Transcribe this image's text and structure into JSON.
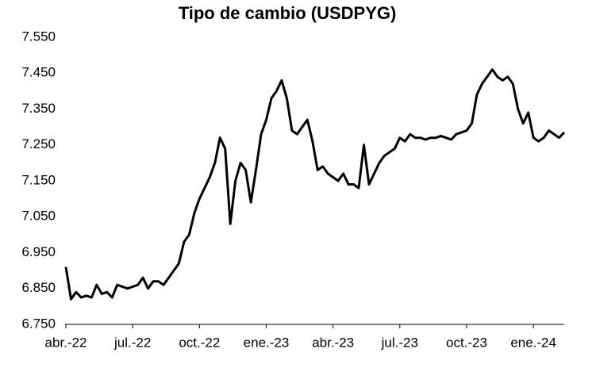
{
  "chart_data": {
    "type": "line",
    "title": "Tipo de cambio (USDPYG)",
    "x": [
      "abr.-22",
      null,
      null,
      null,
      null,
      null,
      null,
      null,
      null,
      null,
      null,
      null,
      null,
      "jul.-22",
      null,
      null,
      null,
      null,
      null,
      null,
      null,
      null,
      null,
      null,
      null,
      null,
      "oct.-22",
      null,
      null,
      null,
      null,
      null,
      null,
      null,
      null,
      null,
      null,
      null,
      null,
      "ene.-23",
      null,
      null,
      null,
      null,
      null,
      null,
      null,
      null,
      null,
      null,
      null,
      null,
      "abr.-23",
      null,
      null,
      null,
      null,
      null,
      null,
      null,
      null,
      null,
      null,
      null,
      null,
      "jul.-23",
      null,
      null,
      null,
      null,
      null,
      null,
      null,
      null,
      null,
      null,
      null,
      null,
      "oct.-23",
      null,
      null,
      null,
      null,
      null,
      null,
      null,
      null,
      null,
      null,
      null,
      null,
      "ene.-24",
      null,
      null,
      null,
      null,
      null,
      null
    ],
    "series": [
      {
        "name": "USDPYG",
        "color": "#000000",
        "values": [
          6910,
          6820,
          6840,
          6825,
          6830,
          6825,
          6860,
          6835,
          6840,
          6825,
          6860,
          6855,
          6850,
          6855,
          6860,
          6880,
          6850,
          6870,
          6870,
          6860,
          6880,
          6900,
          6920,
          6980,
          7000,
          7060,
          7100,
          7130,
          7160,
          7200,
          7270,
          7240,
          7030,
          7150,
          7200,
          7180,
          7090,
          7180,
          7280,
          7320,
          7380,
          7400,
          7430,
          7380,
          7290,
          7280,
          7300,
          7320,
          7260,
          7180,
          7190,
          7170,
          7160,
          7150,
          7170,
          7140,
          7140,
          7130,
          7250,
          7140,
          7170,
          7200,
          7220,
          7230,
          7240,
          7270,
          7260,
          7280,
          7270,
          7270,
          7265,
          7270,
          7270,
          7275,
          7270,
          7265,
          7280,
          7285,
          7290,
          7310,
          7390,
          7420,
          7440,
          7460,
          7440,
          7430,
          7440,
          7420,
          7350,
          7310,
          7340,
          7270,
          7260,
          7270,
          7290,
          7280,
          7270,
          7285
        ]
      }
    ],
    "ylim": [
      6750,
      7550
    ],
    "yticks": [
      {
        "value": 6750,
        "label": "6.750"
      },
      {
        "value": 6850,
        "label": "6.850"
      },
      {
        "value": 6950,
        "label": "6.950"
      },
      {
        "value": 7050,
        "label": "7.050"
      },
      {
        "value": 7150,
        "label": "7.150"
      },
      {
        "value": 7250,
        "label": "7.250"
      },
      {
        "value": 7350,
        "label": "7.350"
      },
      {
        "value": 7450,
        "label": "7.450"
      },
      {
        "value": 7550,
        "label": "7.550"
      }
    ],
    "grid": false
  }
}
